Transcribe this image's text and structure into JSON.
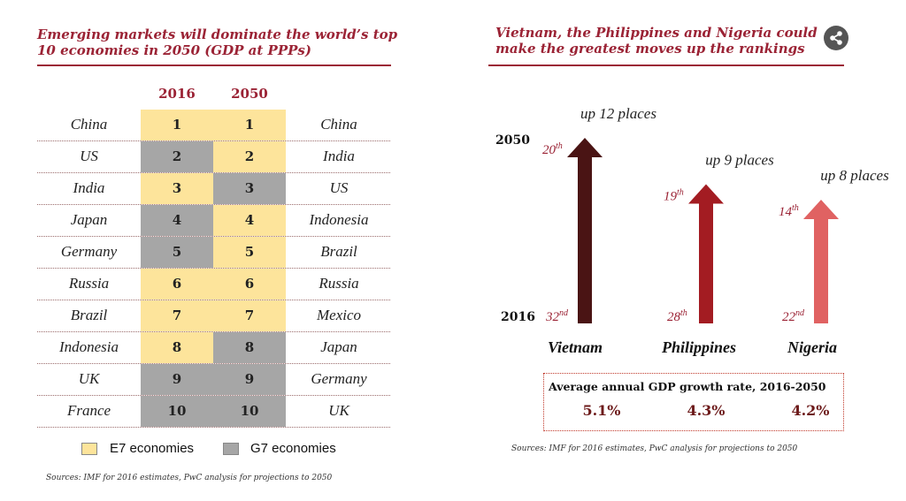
{
  "left_panel": {
    "title_line1": "Emerging markets will dominate the world’s top",
    "title_line2": "10 economies in 2050 (GDP at PPPs)",
    "year_headers": [
      "2016",
      "2050"
    ],
    "legend": [
      {
        "label": "E7 economies",
        "color": "#fde49b"
      },
      {
        "label": "G7 economies",
        "color": "#a6a6a6"
      }
    ],
    "source": "Sources: IMF for 2016 estimates, PwC analysis for projections to 2050"
  },
  "right_panel": {
    "title_line1": "Vietnam, the Philippines and Nigeria could",
    "title_line2": "make the greatest moves up the rankings",
    "year_2050": "2050",
    "year_2016": "2016",
    "growth_title": "Average annual GDP growth rate, 2016-2050",
    "source": "Sources: IMF for 2016 estimates, PwC analysis for projections to 2050"
  },
  "colors": {
    "title": "#9b2335",
    "e7": "#fde49b",
    "g7": "#a6a6a6",
    "vietnam": "#4a1414",
    "philippines": "#a31c22",
    "nigeria": "#e06262"
  },
  "chart_data": [
    {
      "type": "table",
      "title": "Emerging markets will dominate the world’s top 10 economies in 2050 (GDP at PPPs)",
      "columns": [
        "2016",
        "2050"
      ],
      "rows": [
        {
          "rank": 1,
          "country_2016": "China",
          "group_2016": "E7",
          "country_2050": "China",
          "group_2050": "E7"
        },
        {
          "rank": 2,
          "country_2016": "US",
          "group_2016": "G7",
          "country_2050": "India",
          "group_2050": "E7"
        },
        {
          "rank": 3,
          "country_2016": "India",
          "group_2016": "E7",
          "country_2050": "US",
          "group_2050": "G7"
        },
        {
          "rank": 4,
          "country_2016": "Japan",
          "group_2016": "G7",
          "country_2050": "Indonesia",
          "group_2050": "E7"
        },
        {
          "rank": 5,
          "country_2016": "Germany",
          "group_2016": "G7",
          "country_2050": "Brazil",
          "group_2050": "E7"
        },
        {
          "rank": 6,
          "country_2016": "Russia",
          "group_2016": "E7",
          "country_2050": "Russia",
          "group_2050": "E7"
        },
        {
          "rank": 7,
          "country_2016": "Brazil",
          "group_2016": "E7",
          "country_2050": "Mexico",
          "group_2050": "E7"
        },
        {
          "rank": 8,
          "country_2016": "Indonesia",
          "group_2016": "E7",
          "country_2050": "Japan",
          "group_2050": "G7"
        },
        {
          "rank": 9,
          "country_2016": "UK",
          "group_2016": "G7",
          "country_2050": "Germany",
          "group_2050": "G7"
        },
        {
          "rank": 10,
          "country_2016": "France",
          "group_2016": "G7",
          "country_2050": "UK",
          "group_2050": "G7"
        }
      ]
    },
    {
      "type": "bar",
      "title": "Vietnam, the Philippines and Nigeria could make the greatest moves up the rankings",
      "categories": [
        "Vietnam",
        "Philippines",
        "Nigeria"
      ],
      "rank_2016": [
        32,
        28,
        22
      ],
      "rank_2050": [
        20,
        19,
        14
      ],
      "rank_2016_labels": [
        "32nd",
        "28th",
        "22nd"
      ],
      "rank_2050_labels": [
        "20th",
        "19th",
        "14th"
      ],
      "places_moved": [
        12,
        9,
        8
      ],
      "move_labels": [
        "up 12 places",
        "up 9 places",
        "up 8 places"
      ],
      "growth_rate_percent": [
        5.1,
        4.3,
        4.2
      ],
      "growth_labels": [
        "5.1%",
        "4.3%",
        "4.2%"
      ]
    }
  ]
}
